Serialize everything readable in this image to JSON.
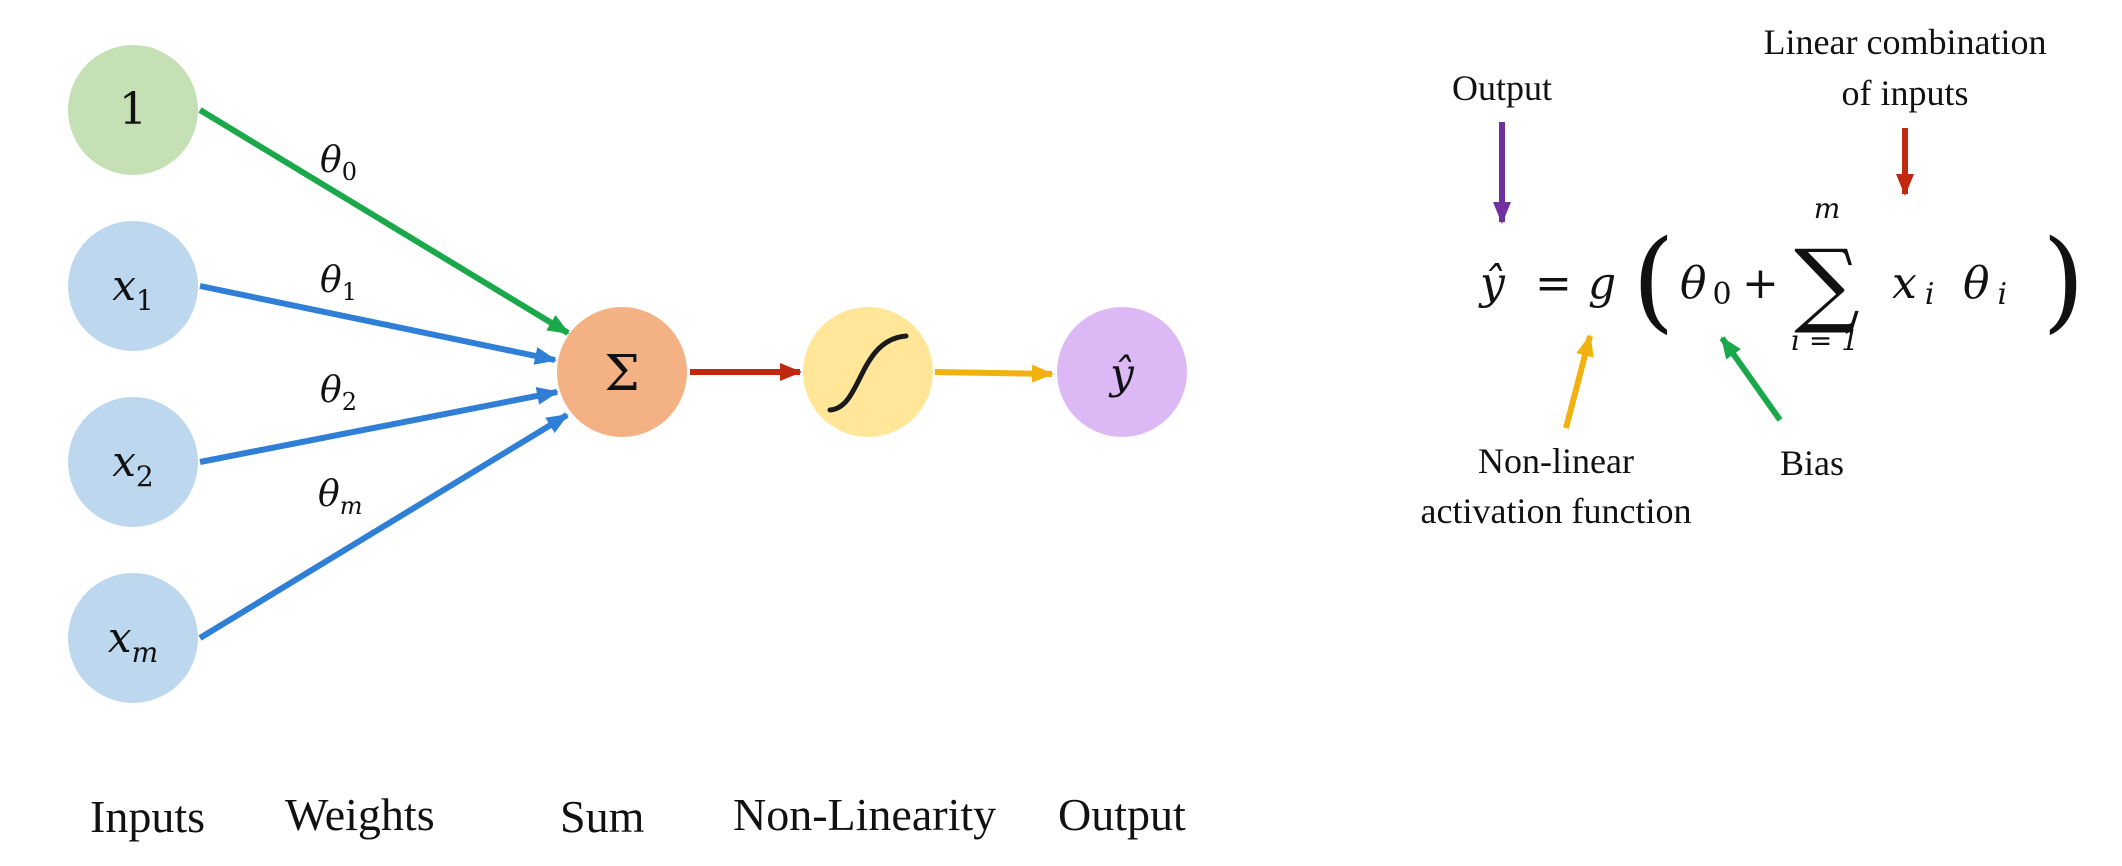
{
  "nodes": {
    "bias": {
      "text": "1",
      "color": "#c5e0b4"
    },
    "input_1": {
      "base": "x",
      "sub": "1",
      "color": "#bdd7ee"
    },
    "input_2": {
      "base": "x",
      "sub": "2",
      "color": "#bdd7ee"
    },
    "input_m": {
      "base": "x",
      "sub": "m",
      "color": "#bdd7ee"
    },
    "sum": {
      "symbol": "Σ",
      "color": "#f4b183"
    },
    "activation": {
      "color": "#ffe699"
    },
    "output": {
      "symbol": "ŷ",
      "color": "#dcb9f5"
    }
  },
  "weights": {
    "w0": {
      "base": "θ",
      "sub": "0"
    },
    "w1": {
      "base": "θ",
      "sub": "1"
    },
    "w2": {
      "base": "θ",
      "sub": "2"
    },
    "wm": {
      "base": "θ",
      "sub": "m"
    }
  },
  "stage_labels": {
    "inputs": "Inputs",
    "weights": "Weights",
    "sum": "Sum",
    "nonlinearity": "Non-Linearity",
    "output": "Output"
  },
  "equation": {
    "yhat": "ŷ",
    "equals": "=",
    "g": "g",
    "open_paren": "(",
    "theta0_base": "θ",
    "theta0_sub": "0",
    "plus": "+",
    "sigma": "∑",
    "sum_upper": "m",
    "sum_lower": "i = 1",
    "x_base": "x",
    "x_sub": "i",
    "theta_i_base": "θ",
    "theta_i_sub": "i",
    "close_paren": ")"
  },
  "annotations": {
    "output": "Output",
    "linear_line1": "Linear combination",
    "linear_line2": "of inputs",
    "nonlinear_line1": "Non-linear",
    "nonlinear_line2": "activation function",
    "bias": "Bias"
  },
  "colors": {
    "bias_arrow": "#1aa84b",
    "input_arrows": "#2f7fd6",
    "sum_arrow": "#c0280f",
    "activation_arrow": "#f2b10e",
    "output_annotation_arrow": "#7030a0",
    "linear_annotation_arrow": "#c0280f",
    "nonlinear_annotation_arrow": "#f2b10e",
    "bias_annotation_arrow": "#1aa84b"
  }
}
